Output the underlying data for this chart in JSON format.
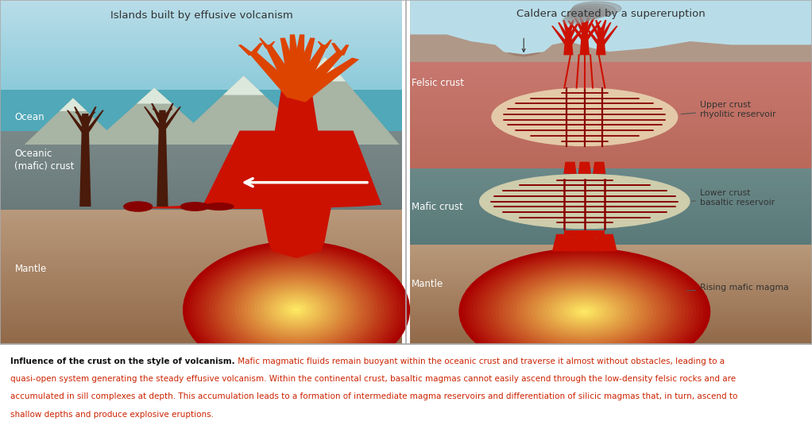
{
  "fig_width": 10.22,
  "fig_height": 5.35,
  "dpi": 100,
  "colors": {
    "sky_top": "#b8dde8",
    "sky_bot": "#88c8d8",
    "ocean": "#50a8b8",
    "crust_top": "#7a8888",
    "crust_bot": "#687878",
    "mantle_top": "#b8987a",
    "mantle_mid": "#a88868",
    "mantle_bot": "#906848",
    "felsic_top": "#c87870",
    "felsic_bot": "#b86858",
    "mafic_top": "#6a8888",
    "mafic_bot": "#587878",
    "surface_right_top": "#c0b0a8",
    "surface_right_bot": "#b09888",
    "magma_center": "#ffee66",
    "magma_inner": "#ff8800",
    "magma_outer": "#aa0000",
    "magma_dark": "#880000",
    "lava_red": "#cc1100",
    "lava_orange": "#dd4400",
    "tree_dark": "#4a1a0a",
    "mountain_body": "#a8b4a4",
    "mountain_snow": "#dce8dc",
    "white": "#ffffff",
    "text_dark": "#333333",
    "text_white": "#ffffff",
    "text_red": "#cc2200",
    "text_black_bold": "#111111",
    "border": "#aaaaaa",
    "reservoir_upper": "#e8d4b0",
    "reservoir_lower": "#d8d4b0",
    "smoke": "#909090"
  },
  "left_title": "Islands built by effusive volcanism",
  "right_title": "Caldera created by a supereruption",
  "caption_lines": [
    {
      "bold": "Influence of the crust on the style of volcanism.",
      "normal": " Mafic magmatic fluids remain buoyant within the oceanic crust and traverse it almost without obstacles, leading to a"
    },
    {
      "bold": "",
      "normal": "quasi-open system generating the steady effusive volcanism. Within the continental crust, basaltic magmas cannot easily ascend through the low-density felsic rocks and are"
    },
    {
      "bold": "",
      "normal": "accumulated in sill complexes at depth. This accumulation leads to a formation of intermediate magma reservoirs and differentiation of silicic magmas that, in turn, ascend to"
    },
    {
      "bold": "",
      "normal": "shallow depths and produce explosive eruptions."
    }
  ]
}
